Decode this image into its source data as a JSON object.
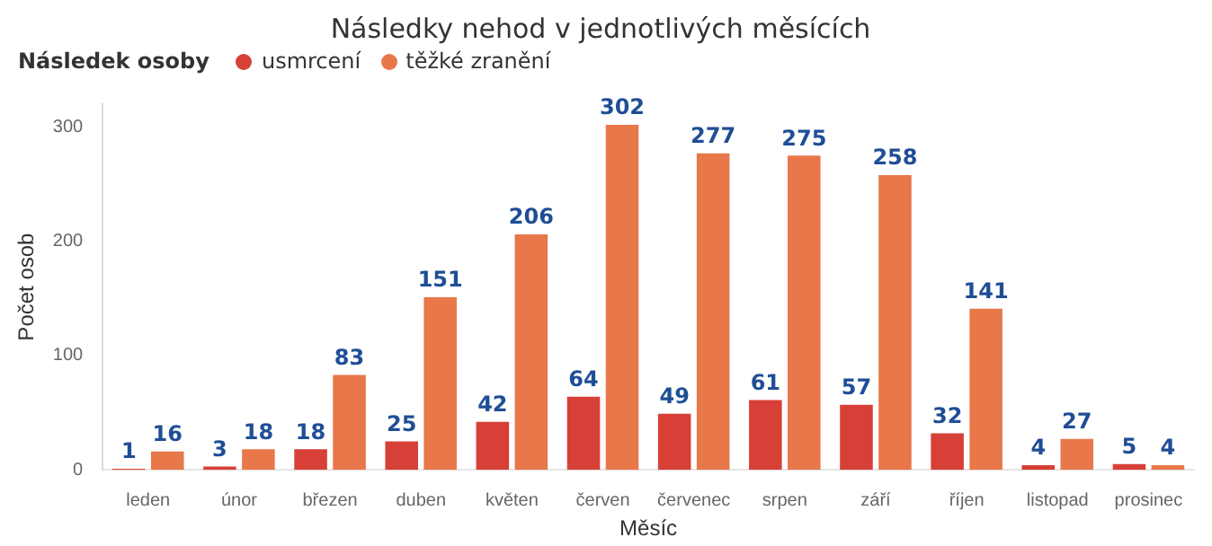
{
  "chart_data": {
    "type": "bar",
    "title": "Následky nehod v jednotlivých měsících",
    "xlabel": "Měsíc",
    "ylabel": "Počet osob",
    "legend_title": "Následek osoby",
    "legend": "top left",
    "categories": [
      "leden",
      "únor",
      "březen",
      "duben",
      "květen",
      "červen",
      "červenec",
      "srpen",
      "září",
      "říjen",
      "listopad",
      "prosinec"
    ],
    "series": [
      {
        "name": "usmrcení",
        "color": "#d64037",
        "values": [
          1,
          3,
          18,
          25,
          42,
          64,
          49,
          61,
          57,
          32,
          4,
          5
        ]
      },
      {
        "name": "těžké zranění",
        "color": "#e8774a",
        "values": [
          16,
          18,
          83,
          151,
          206,
          302,
          277,
          275,
          258,
          141,
          27,
          4
        ]
      }
    ],
    "ylim": [
      0,
      320
    ],
    "yticks": [
      0,
      100,
      200,
      300
    ],
    "grid": false,
    "data_labels": true
  }
}
